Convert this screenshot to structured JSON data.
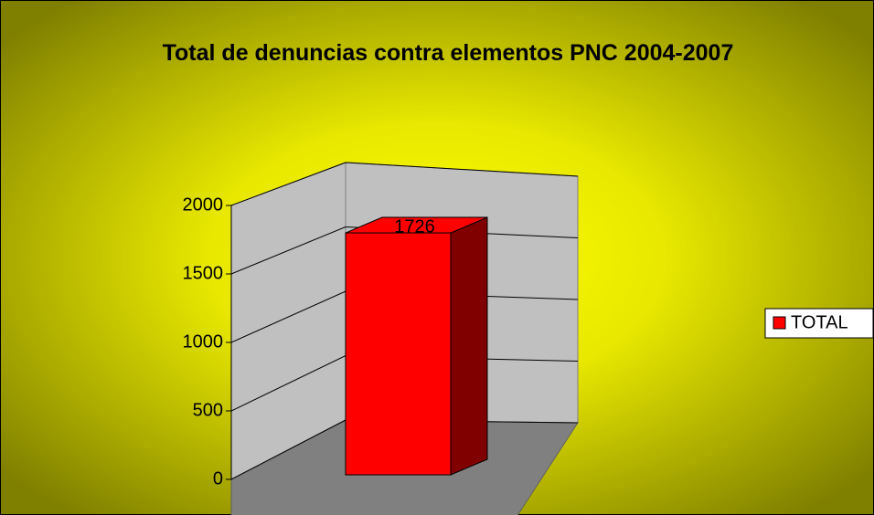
{
  "chart_data": {
    "type": "bar3d",
    "title": "Total de denuncias contra elementos PNC 2004-2007",
    "categories": [
      null
    ],
    "series": [
      {
        "name": "TOTAL",
        "color": "#ff0000",
        "values": [
          1726
        ]
      }
    ],
    "ylim": [
      0,
      2000
    ],
    "yticks": [
      0,
      500,
      1000,
      1500,
      2000
    ],
    "grid": true,
    "legend": "right"
  }
}
